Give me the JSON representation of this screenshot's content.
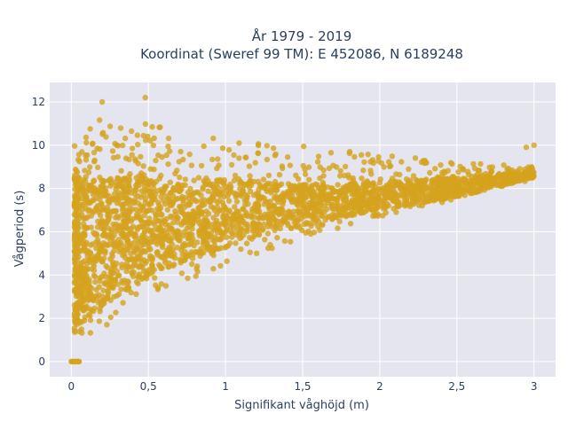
{
  "chart_data": {
    "type": "scatter",
    "title_line1": "År 1979 - 2019",
    "title_line2": "Koordinat (Sweref 99 TM): E 452086, N 6189248",
    "xlabel": "Signifikant våghöjd (m)",
    "ylabel": "Vågperiod (s)",
    "xlim": [
      -0.14,
      3.14
    ],
    "ylim": [
      -0.7,
      12.9
    ],
    "xticks": [
      0,
      0.5,
      1,
      1.5,
      2,
      2.5,
      3
    ],
    "xtick_labels": [
      "0",
      "0,5",
      "1",
      "1,5",
      "2",
      "2,5",
      "3"
    ],
    "yticks": [
      0,
      2,
      4,
      6,
      8,
      10,
      12
    ],
    "ytick_labels": [
      "0",
      "2",
      "4",
      "6",
      "8",
      "10",
      "12"
    ],
    "grid": true,
    "marker_color": "#D4A21E",
    "background_color": "#E5E5EF",
    "distribution": {
      "description_points": [
        {
          "x": 0.0,
          "y": 0.0
        },
        {
          "x": 0.05,
          "y": 0.0
        },
        {
          "x": 0.2,
          "y": 12.0
        },
        {
          "x": 0.48,
          "y": 12.2
        },
        {
          "x": 3.0,
          "y": 10.0
        },
        {
          "x": 2.95,
          "y": 9.9
        }
      ],
      "envelope": {
        "x": [
          0.02,
          0.2,
          0.5,
          1.0,
          1.5,
          2.0,
          2.5,
          3.0
        ],
        "lower": [
          1.0,
          1.5,
          3.0,
          4.5,
          5.7,
          6.7,
          7.5,
          8.4
        ],
        "upper": [
          10.0,
          11.5,
          11.0,
          10.2,
          10.0,
          9.6,
          9.2,
          9.0
        ],
        "core_lower": [
          1.5,
          2.5,
          4.0,
          5.3,
          6.3,
          7.0,
          7.6,
          8.5
        ],
        "core_upper": [
          8.5,
          8.6,
          8.5,
          8.4,
          8.2,
          8.3,
          8.5,
          8.8
        ]
      }
    }
  }
}
